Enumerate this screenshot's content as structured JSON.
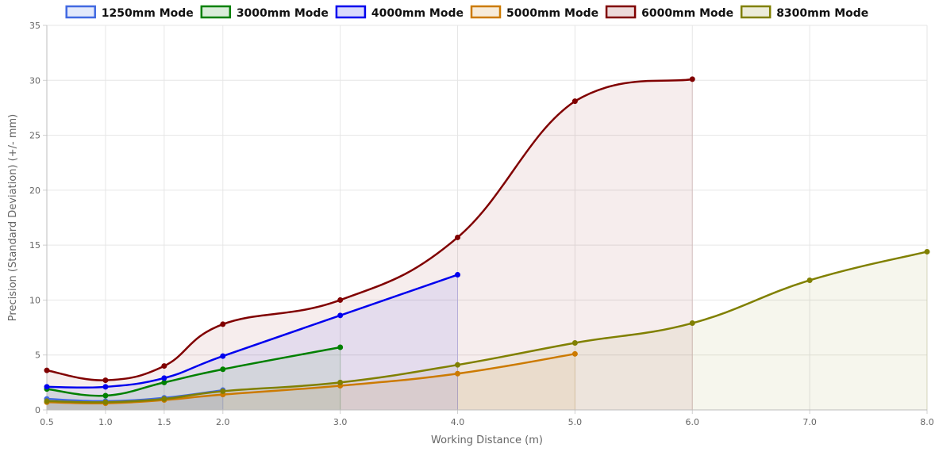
{
  "chart_data": {
    "type": "line",
    "title": "",
    "xlabel": "Working Distance (m)",
    "ylabel": "Precision (Standard Deviation) (+/- mm)",
    "xlim": [
      0.5,
      8.0
    ],
    "ylim": [
      0,
      35
    ],
    "xticks": [
      0.5,
      1.0,
      1.5,
      2.0,
      3.0,
      4.0,
      5.0,
      6.0,
      7.0,
      8.0
    ],
    "xtick_labels": [
      "0.5",
      "1.0",
      "1.5",
      "2.0",
      "3.0",
      "4.0",
      "5.0",
      "6.0",
      "7.0",
      "8.0"
    ],
    "yticks": [
      0,
      5,
      10,
      15,
      20,
      25,
      30,
      35
    ],
    "ytick_labels": [
      "0",
      "5",
      "10",
      "15",
      "20",
      "25",
      "30",
      "35"
    ],
    "grid": true,
    "legend_position": "top",
    "series": [
      {
        "name": "1250mm Mode",
        "color": "#4169e1",
        "x": [
          0.5,
          1.0,
          1.5,
          2.0
        ],
        "values": [
          1.0,
          0.8,
          1.1,
          1.8
        ]
      },
      {
        "name": "3000mm Mode",
        "color": "#008000",
        "x": [
          0.5,
          1.0,
          1.5,
          2.0,
          3.0
        ],
        "values": [
          1.9,
          1.3,
          2.5,
          3.7,
          5.7
        ]
      },
      {
        "name": "4000mm Mode",
        "color": "#0000ee",
        "x": [
          0.5,
          1.0,
          1.5,
          2.0,
          3.0,
          4.0
        ],
        "values": [
          2.1,
          2.1,
          2.9,
          4.9,
          8.6,
          12.3
        ]
      },
      {
        "name": "5000mm Mode",
        "color": "#cc7a00",
        "x": [
          0.5,
          1.0,
          1.5,
          2.0,
          3.0,
          4.0,
          5.0
        ],
        "values": [
          0.7,
          0.6,
          0.9,
          1.4,
          2.2,
          3.3,
          5.1
        ]
      },
      {
        "name": "6000mm Mode",
        "color": "#800000",
        "x": [
          0.5,
          1.0,
          1.5,
          2.0,
          3.0,
          4.0,
          5.0,
          6.0
        ],
        "values": [
          3.6,
          2.7,
          4.0,
          7.8,
          10.0,
          15.7,
          28.1,
          30.1
        ]
      },
      {
        "name": "8300mm Mode",
        "color": "#808000",
        "x": [
          0.5,
          1.0,
          1.5,
          2.0,
          3.0,
          4.0,
          5.0,
          6.0,
          7.0,
          8.0
        ],
        "values": [
          0.8,
          0.7,
          1.0,
          1.7,
          2.5,
          4.1,
          6.1,
          7.9,
          11.8,
          14.4
        ]
      }
    ]
  }
}
